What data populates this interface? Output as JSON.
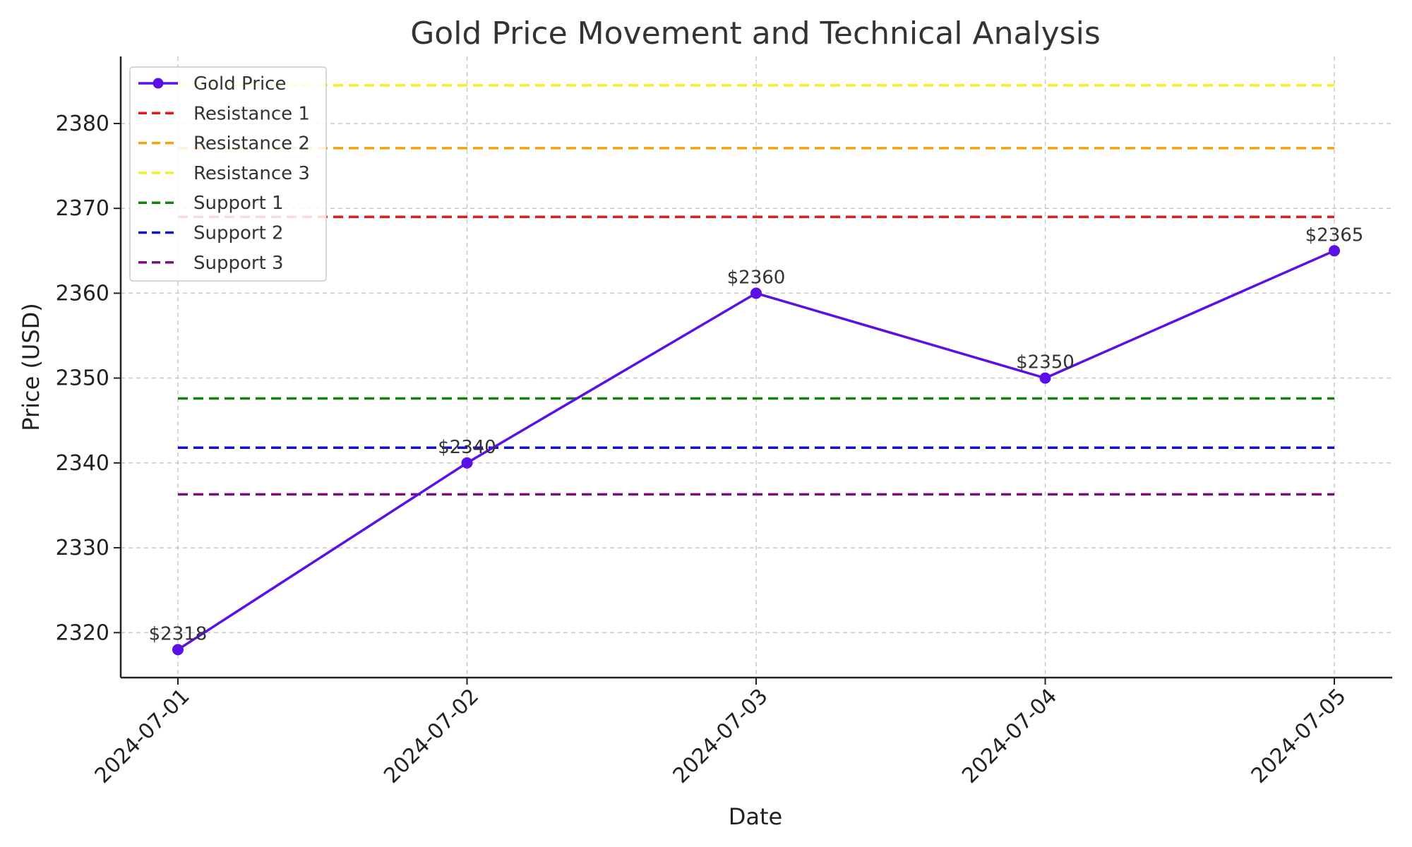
{
  "chart_data": {
    "type": "line",
    "title": "Gold Price Movement and Technical Analysis",
    "xlabel": "Date",
    "ylabel": "Price (USD)",
    "categories": [
      "2024-07-01",
      "2024-07-02",
      "2024-07-03",
      "2024-07-04",
      "2024-07-05"
    ],
    "yticks": [
      2320,
      2330,
      2340,
      2350,
      2360,
      2370,
      2380
    ],
    "ylim": [
      2314.7,
      2387.9
    ],
    "grid": true,
    "legend_position": "top-left",
    "series": [
      {
        "name": "Gold Price",
        "values": [
          2318,
          2340,
          2360,
          2350,
          2365
        ],
        "labels": [
          "$2318",
          "$2340",
          "$2360",
          "$2350",
          "$2365"
        ],
        "color": "#5a10e6"
      }
    ],
    "levels": [
      {
        "name": "Resistance 1",
        "value": 2369,
        "color": "#e31a1c"
      },
      {
        "name": "Resistance 2",
        "value": 2377.1,
        "color": "#f2a20f"
      },
      {
        "name": "Resistance 3",
        "value": 2384.5,
        "color": "#f5ef2a"
      },
      {
        "name": "Support 1",
        "value": 2347.6,
        "color": "#16800f"
      },
      {
        "name": "Support 2",
        "value": 2341.8,
        "color": "#1212c8"
      },
      {
        "name": "Support 3",
        "value": 2336.3,
        "color": "#7a0f80"
      }
    ]
  }
}
